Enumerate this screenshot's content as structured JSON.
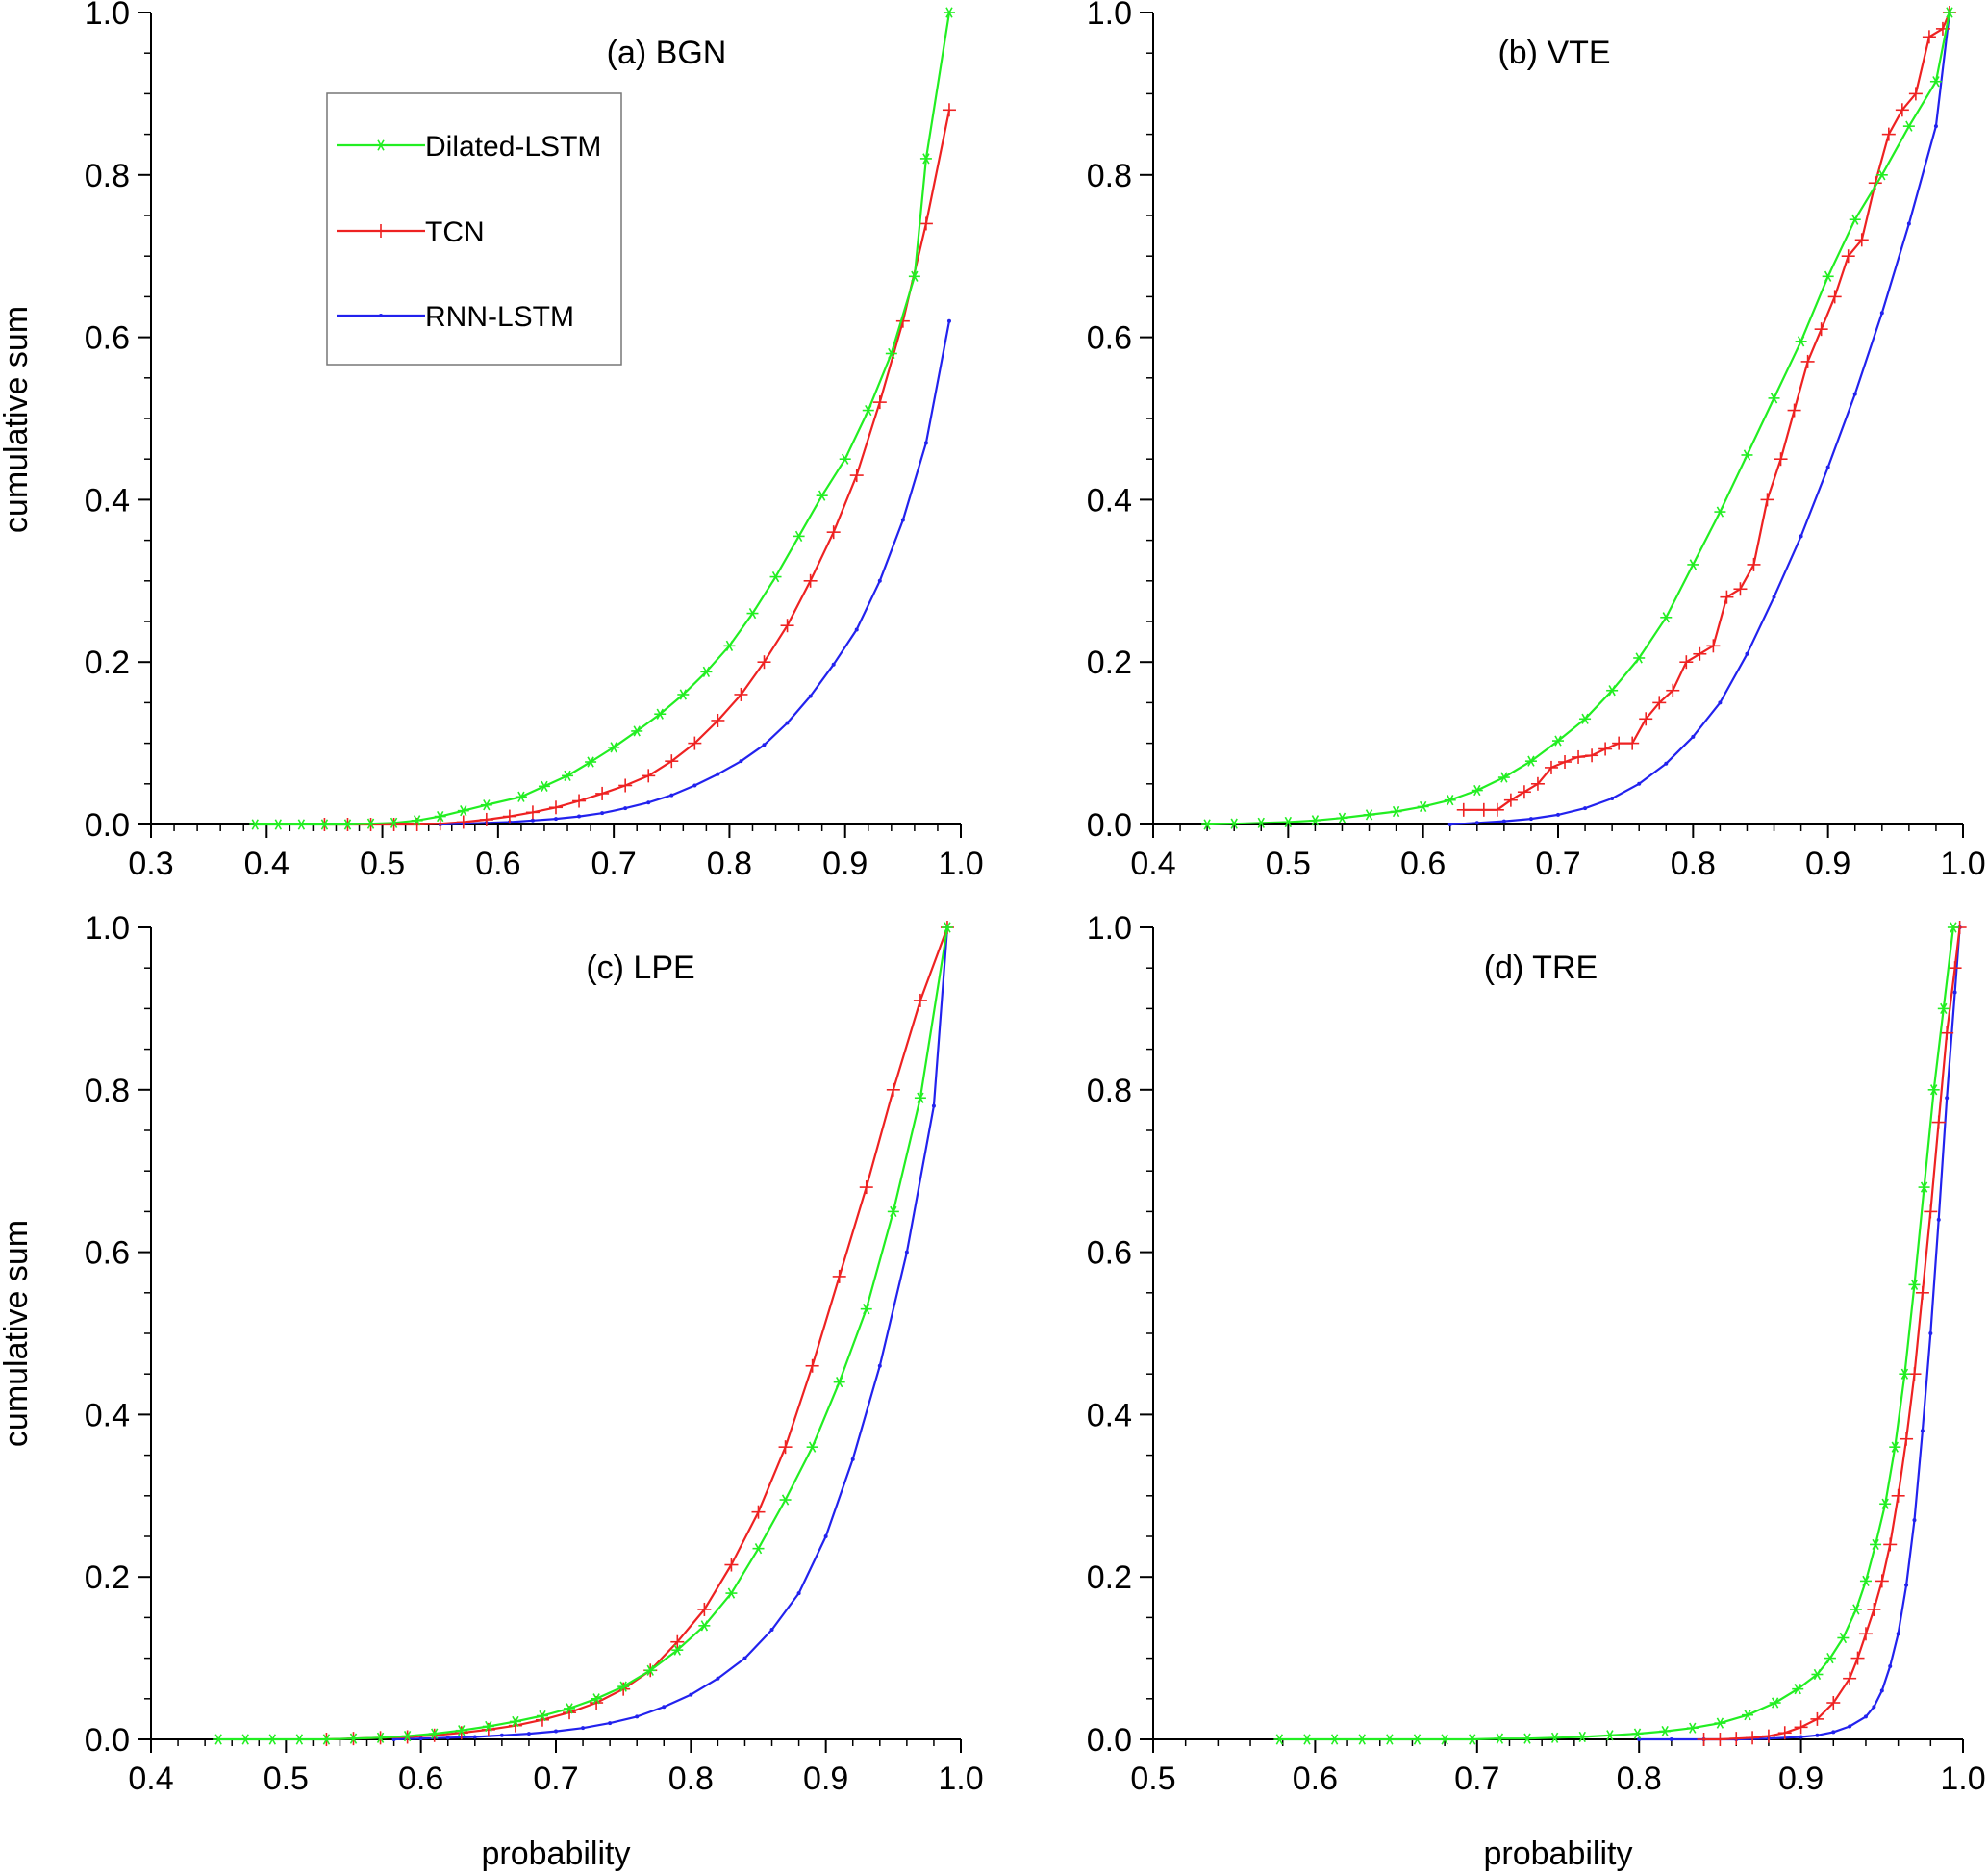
{
  "figure": {
    "ylabel": "cumulative sum",
    "xlabel": "probability"
  },
  "legend": {
    "placement": "top-left of panel (a)",
    "entries": [
      {
        "name": "Dilated-LSTM",
        "color": "#22ee22",
        "marker": "asterisk"
      },
      {
        "name": "TCN",
        "color": "#ee2222",
        "marker": "plus"
      },
      {
        "name": "RNN-LSTM",
        "color": "#2222ee",
        "marker": "dot"
      }
    ]
  },
  "chart_data": [
    {
      "type": "line",
      "title": "(a) BGN",
      "xlabel": "",
      "ylabel": "cumulative sum",
      "xlim": [
        0.3,
        1.0
      ],
      "ylim": [
        0.0,
        1.0
      ],
      "xticks": [
        "0.3",
        "0.4",
        "0.5",
        "0.6",
        "0.7",
        "0.8",
        "0.9",
        "1.0"
      ],
      "yticks": [
        "0.0",
        "0.2",
        "0.4",
        "0.6",
        "0.8",
        "1.0"
      ],
      "series": [
        {
          "name": "Dilated-LSTM",
          "x": [
            0.39,
            0.41,
            0.43,
            0.45,
            0.47,
            0.49,
            0.51,
            0.53,
            0.55,
            0.57,
            0.59,
            0.62,
            0.64,
            0.66,
            0.68,
            0.7,
            0.72,
            0.74,
            0.76,
            0.78,
            0.8,
            0.82,
            0.84,
            0.86,
            0.88,
            0.9,
            0.92,
            0.94,
            0.96,
            0.97,
            0.99
          ],
          "y": [
            0,
            0,
            0,
            0,
            0,
            0.001,
            0.002,
            0.005,
            0.01,
            0.017,
            0.024,
            0.034,
            0.047,
            0.06,
            0.077,
            0.095,
            0.115,
            0.136,
            0.16,
            0.188,
            0.22,
            0.26,
            0.305,
            0.355,
            0.405,
            0.45,
            0.51,
            0.58,
            0.675,
            0.82,
            1.0
          ]
        },
        {
          "name": "TCN",
          "x": [
            0.45,
            0.47,
            0.49,
            0.51,
            0.53,
            0.55,
            0.57,
            0.59,
            0.61,
            0.63,
            0.65,
            0.67,
            0.69,
            0.71,
            0.73,
            0.75,
            0.77,
            0.79,
            0.81,
            0.83,
            0.85,
            0.87,
            0.89,
            0.91,
            0.93,
            0.95,
            0.97,
            0.99
          ],
          "y": [
            0,
            0,
            0,
            0,
            0,
            0.001,
            0.003,
            0.006,
            0.01,
            0.015,
            0.021,
            0.029,
            0.038,
            0.048,
            0.06,
            0.078,
            0.1,
            0.128,
            0.16,
            0.2,
            0.245,
            0.3,
            0.36,
            0.43,
            0.52,
            0.62,
            0.74,
            0.88
          ]
        },
        {
          "name": "RNN-LSTM",
          "x": [
            0.55,
            0.57,
            0.59,
            0.61,
            0.63,
            0.65,
            0.67,
            0.69,
            0.71,
            0.73,
            0.75,
            0.77,
            0.79,
            0.81,
            0.83,
            0.85,
            0.87,
            0.89,
            0.91,
            0.93,
            0.95,
            0.97,
            0.99
          ],
          "y": [
            0,
            0.001,
            0.002,
            0.003,
            0.005,
            0.007,
            0.01,
            0.014,
            0.02,
            0.027,
            0.036,
            0.048,
            0.062,
            0.078,
            0.098,
            0.125,
            0.158,
            0.197,
            0.24,
            0.3,
            0.375,
            0.47,
            0.62
          ]
        }
      ]
    },
    {
      "type": "line",
      "title": "(b) VTE",
      "xlabel": "",
      "ylabel": "",
      "xlim": [
        0.4,
        1.0
      ],
      "ylim": [
        0.0,
        1.0
      ],
      "xticks": [
        "0.4",
        "0.5",
        "0.6",
        "0.7",
        "0.8",
        "0.9",
        "1.0"
      ],
      "yticks": [
        "0.0",
        "0.2",
        "0.4",
        "0.6",
        "0.8",
        "1.0"
      ],
      "series": [
        {
          "name": "Dilated-LSTM",
          "x": [
            0.44,
            0.46,
            0.48,
            0.5,
            0.52,
            0.54,
            0.56,
            0.58,
            0.6,
            0.62,
            0.64,
            0.66,
            0.68,
            0.7,
            0.72,
            0.74,
            0.76,
            0.78,
            0.8,
            0.82,
            0.84,
            0.86,
            0.88,
            0.9,
            0.92,
            0.94,
            0.96,
            0.98,
            0.99
          ],
          "y": [
            0,
            0.001,
            0.002,
            0.003,
            0.005,
            0.008,
            0.012,
            0.016,
            0.022,
            0.03,
            0.042,
            0.058,
            0.078,
            0.103,
            0.13,
            0.165,
            0.205,
            0.255,
            0.32,
            0.385,
            0.455,
            0.525,
            0.595,
            0.675,
            0.745,
            0.8,
            0.86,
            0.915,
            1.0
          ]
        },
        {
          "name": "TCN",
          "x": [
            0.63,
            0.645,
            0.655,
            0.665,
            0.675,
            0.685,
            0.695,
            0.705,
            0.715,
            0.725,
            0.735,
            0.745,
            0.755,
            0.765,
            0.775,
            0.785,
            0.795,
            0.805,
            0.815,
            0.825,
            0.835,
            0.845,
            0.855,
            0.865,
            0.875,
            0.885,
            0.895,
            0.905,
            0.915,
            0.925,
            0.935,
            0.945,
            0.955,
            0.965,
            0.975,
            0.985,
            0.99
          ],
          "y": [
            0.018,
            0.018,
            0.018,
            0.03,
            0.04,
            0.05,
            0.07,
            0.077,
            0.083,
            0.085,
            0.093,
            0.1,
            0.1,
            0.13,
            0.15,
            0.165,
            0.2,
            0.21,
            0.22,
            0.28,
            0.29,
            0.32,
            0.4,
            0.45,
            0.51,
            0.57,
            0.61,
            0.65,
            0.7,
            0.72,
            0.79,
            0.85,
            0.88,
            0.9,
            0.97,
            0.98,
            1.0
          ]
        },
        {
          "name": "RNN-LSTM",
          "x": [
            0.62,
            0.64,
            0.66,
            0.68,
            0.7,
            0.72,
            0.74,
            0.76,
            0.78,
            0.8,
            0.82,
            0.84,
            0.86,
            0.88,
            0.9,
            0.92,
            0.94,
            0.96,
            0.98,
            0.99
          ],
          "y": [
            0,
            0.002,
            0.004,
            0.007,
            0.012,
            0.02,
            0.032,
            0.05,
            0.075,
            0.108,
            0.15,
            0.21,
            0.28,
            0.355,
            0.44,
            0.53,
            0.63,
            0.74,
            0.86,
            1.0
          ]
        }
      ]
    },
    {
      "type": "line",
      "title": "(c) LPE",
      "xlabel": "probability",
      "ylabel": "cumulative sum",
      "xlim": [
        0.4,
        1.0
      ],
      "ylim": [
        0.0,
        1.0
      ],
      "xticks": [
        "0.4",
        "0.5",
        "0.6",
        "0.7",
        "0.8",
        "0.9",
        "1.0"
      ],
      "yticks": [
        "0.0",
        "0.2",
        "0.4",
        "0.6",
        "0.8",
        "1.0"
      ],
      "series": [
        {
          "name": "Dilated-LSTM",
          "x": [
            0.45,
            0.47,
            0.49,
            0.51,
            0.53,
            0.55,
            0.57,
            0.59,
            0.61,
            0.63,
            0.65,
            0.67,
            0.69,
            0.71,
            0.73,
            0.75,
            0.77,
            0.79,
            0.81,
            0.83,
            0.85,
            0.87,
            0.89,
            0.91,
            0.93,
            0.95,
            0.97,
            0.99
          ],
          "y": [
            0,
            0,
            0,
            0,
            0,
            0.001,
            0.002,
            0.004,
            0.007,
            0.011,
            0.016,
            0.022,
            0.029,
            0.038,
            0.05,
            0.065,
            0.085,
            0.11,
            0.14,
            0.18,
            0.235,
            0.295,
            0.36,
            0.44,
            0.53,
            0.65,
            0.79,
            1.0
          ]
        },
        {
          "name": "TCN",
          "x": [
            0.53,
            0.55,
            0.57,
            0.59,
            0.61,
            0.63,
            0.65,
            0.67,
            0.69,
            0.71,
            0.73,
            0.75,
            0.77,
            0.79,
            0.81,
            0.83,
            0.85,
            0.87,
            0.89,
            0.91,
            0.93,
            0.95,
            0.97,
            0.99
          ],
          "y": [
            0,
            0.001,
            0.002,
            0.003,
            0.005,
            0.008,
            0.012,
            0.017,
            0.024,
            0.033,
            0.045,
            0.062,
            0.085,
            0.12,
            0.16,
            0.215,
            0.28,
            0.36,
            0.46,
            0.57,
            0.68,
            0.8,
            0.91,
            1.0
          ]
        },
        {
          "name": "RNN-LSTM",
          "x": [
            0.58,
            0.6,
            0.62,
            0.64,
            0.66,
            0.68,
            0.7,
            0.72,
            0.74,
            0.76,
            0.78,
            0.8,
            0.82,
            0.84,
            0.86,
            0.88,
            0.9,
            0.92,
            0.94,
            0.96,
            0.98,
            0.99
          ],
          "y": [
            0,
            0.001,
            0.002,
            0.003,
            0.005,
            0.007,
            0.01,
            0.014,
            0.02,
            0.028,
            0.04,
            0.055,
            0.075,
            0.1,
            0.135,
            0.18,
            0.25,
            0.345,
            0.46,
            0.6,
            0.78,
            1.0
          ]
        }
      ]
    },
    {
      "type": "line",
      "title": "(d) TRE",
      "xlabel": "probability",
      "ylabel": "",
      "xlim": [
        0.5,
        1.0
      ],
      "ylim": [
        0.0,
        1.0
      ],
      "xticks": [
        "0.5",
        "0.6",
        "0.7",
        "0.8",
        "0.9",
        "1.0"
      ],
      "yticks": [
        "0.0",
        "0.2",
        "0.4",
        "0.6",
        "0.8",
        "1.0"
      ],
      "series": [
        {
          "name": "Dilated-LSTM",
          "x": [
            0.578,
            0.595,
            0.612,
            0.629,
            0.646,
            0.663,
            0.68,
            0.697,
            0.714,
            0.731,
            0.748,
            0.765,
            0.782,
            0.799,
            0.816,
            0.833,
            0.85,
            0.867,
            0.884,
            0.898,
            0.91,
            0.918,
            0.926,
            0.934,
            0.94,
            0.946,
            0.952,
            0.958,
            0.964,
            0.97,
            0.976,
            0.982,
            0.988,
            0.994
          ],
          "y": [
            0,
            0,
            0,
            0,
            0,
            0,
            0,
            0,
            0.001,
            0.001,
            0.002,
            0.003,
            0.005,
            0.007,
            0.01,
            0.014,
            0.02,
            0.03,
            0.045,
            0.062,
            0.08,
            0.1,
            0.125,
            0.16,
            0.195,
            0.24,
            0.29,
            0.36,
            0.45,
            0.56,
            0.68,
            0.8,
            0.9,
            1.0
          ]
        },
        {
          "name": "TCN",
          "x": [
            0.84,
            0.85,
            0.86,
            0.87,
            0.88,
            0.89,
            0.9,
            0.91,
            0.92,
            0.93,
            0.935,
            0.94,
            0.945,
            0.95,
            0.955,
            0.96,
            0.965,
            0.97,
            0.975,
            0.98,
            0.985,
            0.99,
            0.995,
            0.998
          ],
          "y": [
            0,
            0,
            0.001,
            0.002,
            0.004,
            0.008,
            0.015,
            0.025,
            0.045,
            0.075,
            0.1,
            0.13,
            0.16,
            0.195,
            0.24,
            0.3,
            0.37,
            0.45,
            0.55,
            0.65,
            0.76,
            0.87,
            0.95,
            1.0
          ]
        },
        {
          "name": "RNN-LSTM",
          "x": [
            0.8,
            0.82,
            0.84,
            0.86,
            0.88,
            0.9,
            0.91,
            0.92,
            0.93,
            0.94,
            0.945,
            0.95,
            0.955,
            0.96,
            0.965,
            0.97,
            0.975,
            0.98,
            0.985,
            0.99,
            0.995,
            0.998
          ],
          "y": [
            0,
            0,
            0,
            0,
            0.001,
            0.003,
            0.005,
            0.009,
            0.016,
            0.028,
            0.04,
            0.06,
            0.09,
            0.13,
            0.19,
            0.27,
            0.38,
            0.5,
            0.64,
            0.79,
            0.92,
            1.0
          ]
        }
      ]
    }
  ]
}
